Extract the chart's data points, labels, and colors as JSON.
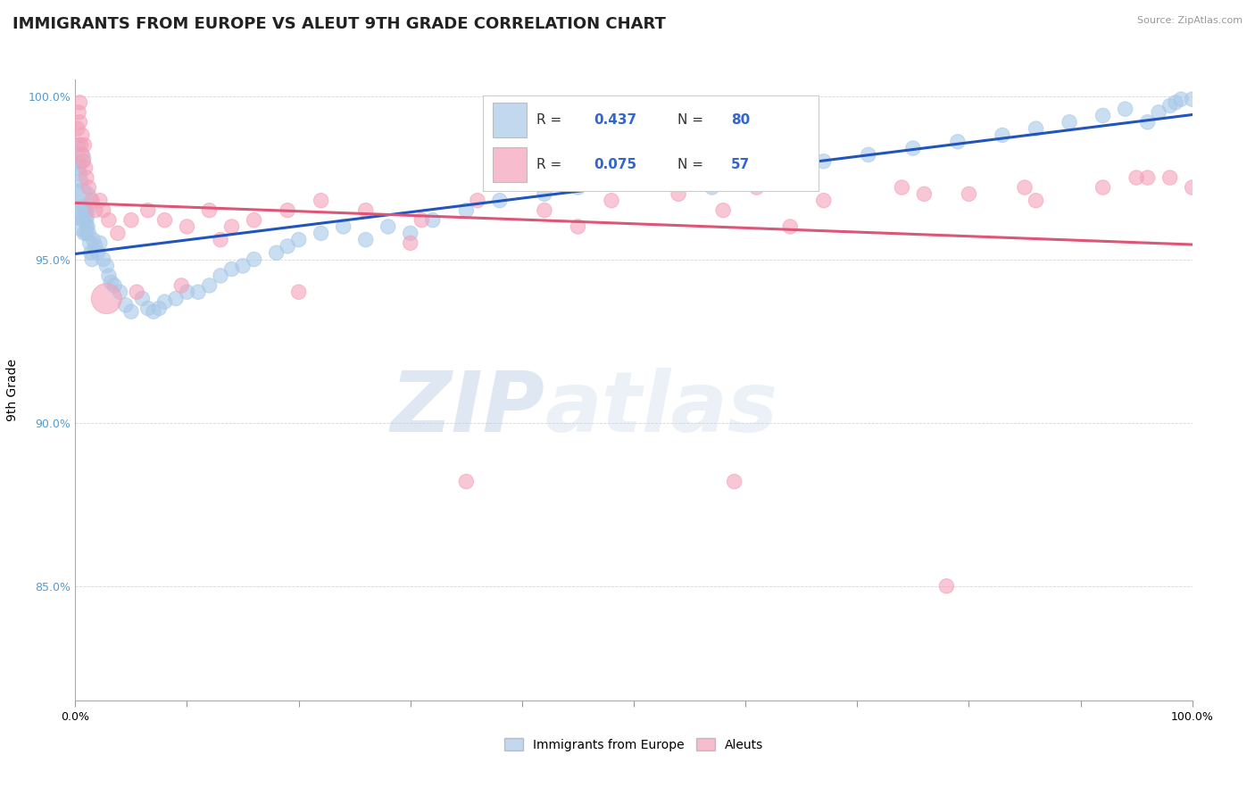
{
  "title": "IMMIGRANTS FROM EUROPE VS ALEUT 9TH GRADE CORRELATION CHART",
  "source_text": "Source: ZipAtlas.com",
  "ylabel": "9th Grade",
  "xlim": [
    0.0,
    1.0
  ],
  "ylim": [
    0.815,
    1.005
  ],
  "y_ticks": [
    0.85,
    0.9,
    0.95,
    1.0
  ],
  "y_tick_labels": [
    "85.0%",
    "90.0%",
    "95.0%",
    "100.0%"
  ],
  "x_ticks": [
    0.0,
    0.1,
    0.2,
    0.3,
    0.4,
    0.5,
    0.6,
    0.7,
    0.8,
    0.9,
    1.0
  ],
  "legend_blue_R": "0.437",
  "legend_blue_N": "80",
  "legend_pink_R": "0.075",
  "legend_pink_N": "57",
  "legend_series_blue": "Immigrants from Europe",
  "legend_series_pink": "Aleuts",
  "blue_color": "#a8c8e8",
  "pink_color": "#f4a0b8",
  "blue_line_color": "#2255bb",
  "pink_line_color": "#dd5577",
  "watermark_zip": "ZIP",
  "watermark_atlas": "atlas",
  "title_fontsize": 13,
  "axis_label_fontsize": 10,
  "tick_fontsize": 9,
  "blue_scatter_x": [
    0.002,
    0.003,
    0.003,
    0.004,
    0.004,
    0.005,
    0.005,
    0.005,
    0.006,
    0.006,
    0.007,
    0.007,
    0.008,
    0.009,
    0.01,
    0.01,
    0.011,
    0.012,
    0.013,
    0.014,
    0.015,
    0.016,
    0.018,
    0.02,
    0.022,
    0.025,
    0.028,
    0.03,
    0.032,
    0.035,
    0.04,
    0.045,
    0.05,
    0.06,
    0.065,
    0.07,
    0.075,
    0.08,
    0.09,
    0.1,
    0.11,
    0.12,
    0.13,
    0.14,
    0.15,
    0.16,
    0.18,
    0.19,
    0.2,
    0.22,
    0.24,
    0.26,
    0.28,
    0.3,
    0.32,
    0.35,
    0.38,
    0.42,
    0.45,
    0.48,
    0.51,
    0.54,
    0.57,
    0.6,
    0.64,
    0.67,
    0.71,
    0.75,
    0.79,
    0.83,
    0.86,
    0.89,
    0.92,
    0.94,
    0.96,
    0.97,
    0.98,
    0.985,
    0.99,
    1.0
  ],
  "blue_scatter_y": [
    0.98,
    0.985,
    0.978,
    0.976,
    0.981,
    0.974,
    0.97,
    0.968,
    0.966,
    0.964,
    0.962,
    0.96,
    0.958,
    0.964,
    0.962,
    0.958,
    0.96,
    0.958,
    0.955,
    0.952,
    0.95,
    0.956,
    0.954,
    0.952,
    0.955,
    0.95,
    0.948,
    0.945,
    0.943,
    0.942,
    0.94,
    0.936,
    0.934,
    0.938,
    0.935,
    0.934,
    0.935,
    0.937,
    0.938,
    0.94,
    0.94,
    0.942,
    0.945,
    0.947,
    0.948,
    0.95,
    0.952,
    0.954,
    0.956,
    0.958,
    0.96,
    0.956,
    0.96,
    0.958,
    0.962,
    0.965,
    0.968,
    0.97,
    0.972,
    0.974,
    0.978,
    0.975,
    0.972,
    0.976,
    0.978,
    0.98,
    0.982,
    0.984,
    0.986,
    0.988,
    0.99,
    0.992,
    0.994,
    0.996,
    0.992,
    0.995,
    0.997,
    0.998,
    0.999,
    0.999
  ],
  "blue_scatter_size": [
    35,
    35,
    35,
    35,
    80,
    35,
    80,
    180,
    35,
    100,
    35,
    70,
    35,
    35,
    35,
    35,
    35,
    35,
    35,
    35,
    35,
    35,
    35,
    35,
    35,
    35,
    35,
    35,
    35,
    35,
    35,
    35,
    35,
    35,
    35,
    35,
    35,
    35,
    35,
    35,
    35,
    35,
    35,
    35,
    35,
    35,
    35,
    35,
    35,
    35,
    35,
    35,
    35,
    35,
    35,
    35,
    35,
    35,
    35,
    35,
    35,
    35,
    35,
    35,
    35,
    35,
    35,
    35,
    35,
    35,
    35,
    35,
    35,
    35,
    35,
    35,
    35,
    35,
    35,
    35
  ],
  "pink_scatter_x": [
    0.002,
    0.003,
    0.004,
    0.004,
    0.005,
    0.006,
    0.006,
    0.007,
    0.008,
    0.009,
    0.01,
    0.012,
    0.015,
    0.018,
    0.022,
    0.025,
    0.03,
    0.038,
    0.05,
    0.065,
    0.08,
    0.1,
    0.12,
    0.14,
    0.16,
    0.19,
    0.22,
    0.26,
    0.31,
    0.36,
    0.42,
    0.48,
    0.54,
    0.61,
    0.67,
    0.74,
    0.8,
    0.86,
    0.92,
    0.96,
    0.98,
    1.0,
    0.13,
    0.3,
    0.45,
    0.58,
    0.64,
    0.76,
    0.85,
    0.95,
    0.028,
    0.055,
    0.095,
    0.2,
    0.35,
    0.59,
    0.78
  ],
  "pink_scatter_y": [
    0.99,
    0.995,
    0.992,
    0.998,
    0.985,
    0.988,
    0.982,
    0.98,
    0.985,
    0.978,
    0.975,
    0.972,
    0.968,
    0.965,
    0.968,
    0.965,
    0.962,
    0.958,
    0.962,
    0.965,
    0.962,
    0.96,
    0.965,
    0.96,
    0.962,
    0.965,
    0.968,
    0.965,
    0.962,
    0.968,
    0.965,
    0.968,
    0.97,
    0.972,
    0.968,
    0.972,
    0.97,
    0.968,
    0.972,
    0.975,
    0.975,
    0.972,
    0.956,
    0.955,
    0.96,
    0.965,
    0.96,
    0.97,
    0.972,
    0.975,
    0.938,
    0.94,
    0.942,
    0.94,
    0.882,
    0.882,
    0.85
  ],
  "pink_scatter_size": [
    35,
    35,
    35,
    35,
    35,
    35,
    35,
    35,
    35,
    35,
    35,
    35,
    35,
    35,
    35,
    35,
    35,
    35,
    35,
    35,
    35,
    35,
    35,
    35,
    35,
    35,
    35,
    35,
    35,
    35,
    35,
    35,
    35,
    35,
    35,
    35,
    35,
    35,
    35,
    35,
    35,
    35,
    35,
    35,
    35,
    35,
    35,
    35,
    35,
    35,
    150,
    35,
    35,
    35,
    35,
    35,
    35
  ]
}
